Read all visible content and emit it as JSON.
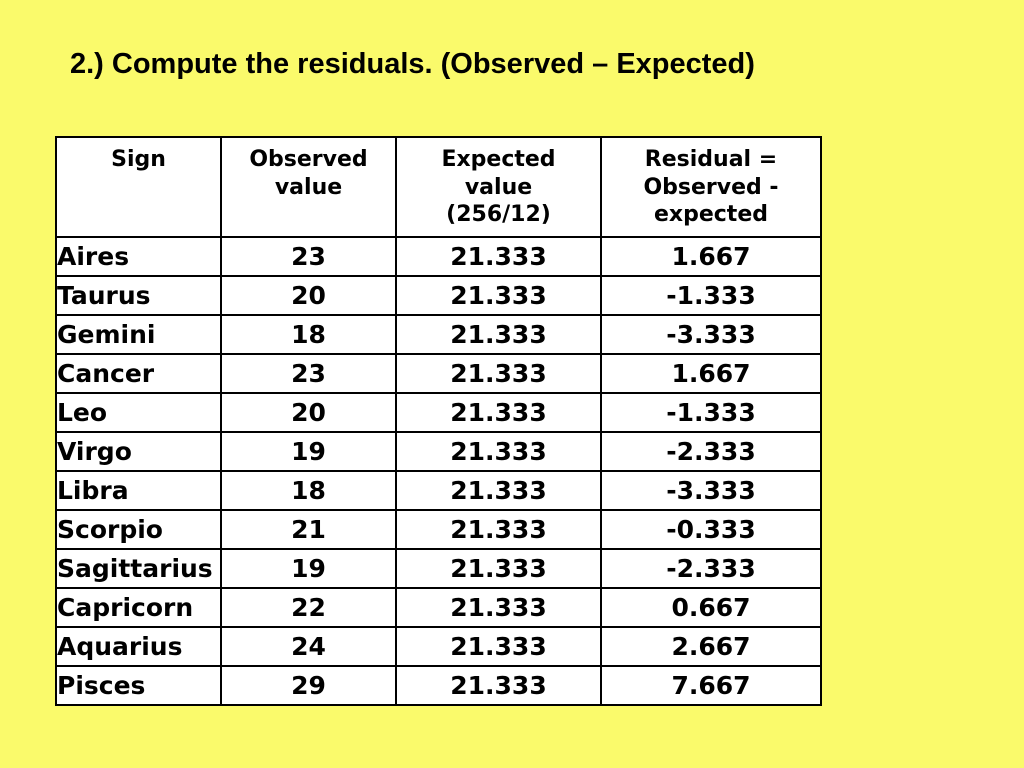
{
  "slide": {
    "title": "2.) Compute the residuals. (Observed – Expected)"
  },
  "colors": {
    "background": "#FAFA6B",
    "table_background": "#FFFFFF",
    "border": "#000000",
    "text": "#000000"
  },
  "table": {
    "headers": [
      "Sign",
      "Observed\nvalue",
      "Expected\nvalue\n(256/12)",
      "Residual =\nObserved -\nexpected"
    ],
    "rows": [
      {
        "sign": "Aires",
        "observed": "23",
        "expected": "21.333",
        "residual": "1.667"
      },
      {
        "sign": "Taurus",
        "observed": "20",
        "expected": "21.333",
        "residual": "-1.333"
      },
      {
        "sign": "Gemini",
        "observed": "18",
        "expected": "21.333",
        "residual": "-3.333"
      },
      {
        "sign": "Cancer",
        "observed": "23",
        "expected": "21.333",
        "residual": "1.667"
      },
      {
        "sign": "Leo",
        "observed": "20",
        "expected": "21.333",
        "residual": "-1.333"
      },
      {
        "sign": "Virgo",
        "observed": "19",
        "expected": "21.333",
        "residual": "-2.333"
      },
      {
        "sign": "Libra",
        "observed": "18",
        "expected": "21.333",
        "residual": "-3.333"
      },
      {
        "sign": "Scorpio",
        "observed": "21",
        "expected": "21.333",
        "residual": "-0.333"
      },
      {
        "sign": "Sagittarius",
        "observed": "19",
        "expected": "21.333",
        "residual": "-2.333"
      },
      {
        "sign": "Capricorn",
        "observed": "22",
        "expected": "21.333",
        "residual": "0.667"
      },
      {
        "sign": "Aquarius",
        "observed": "24",
        "expected": "21.333",
        "residual": "2.667"
      },
      {
        "sign": "Pisces",
        "observed": "29",
        "expected": "21.333",
        "residual": "7.667"
      }
    ]
  }
}
